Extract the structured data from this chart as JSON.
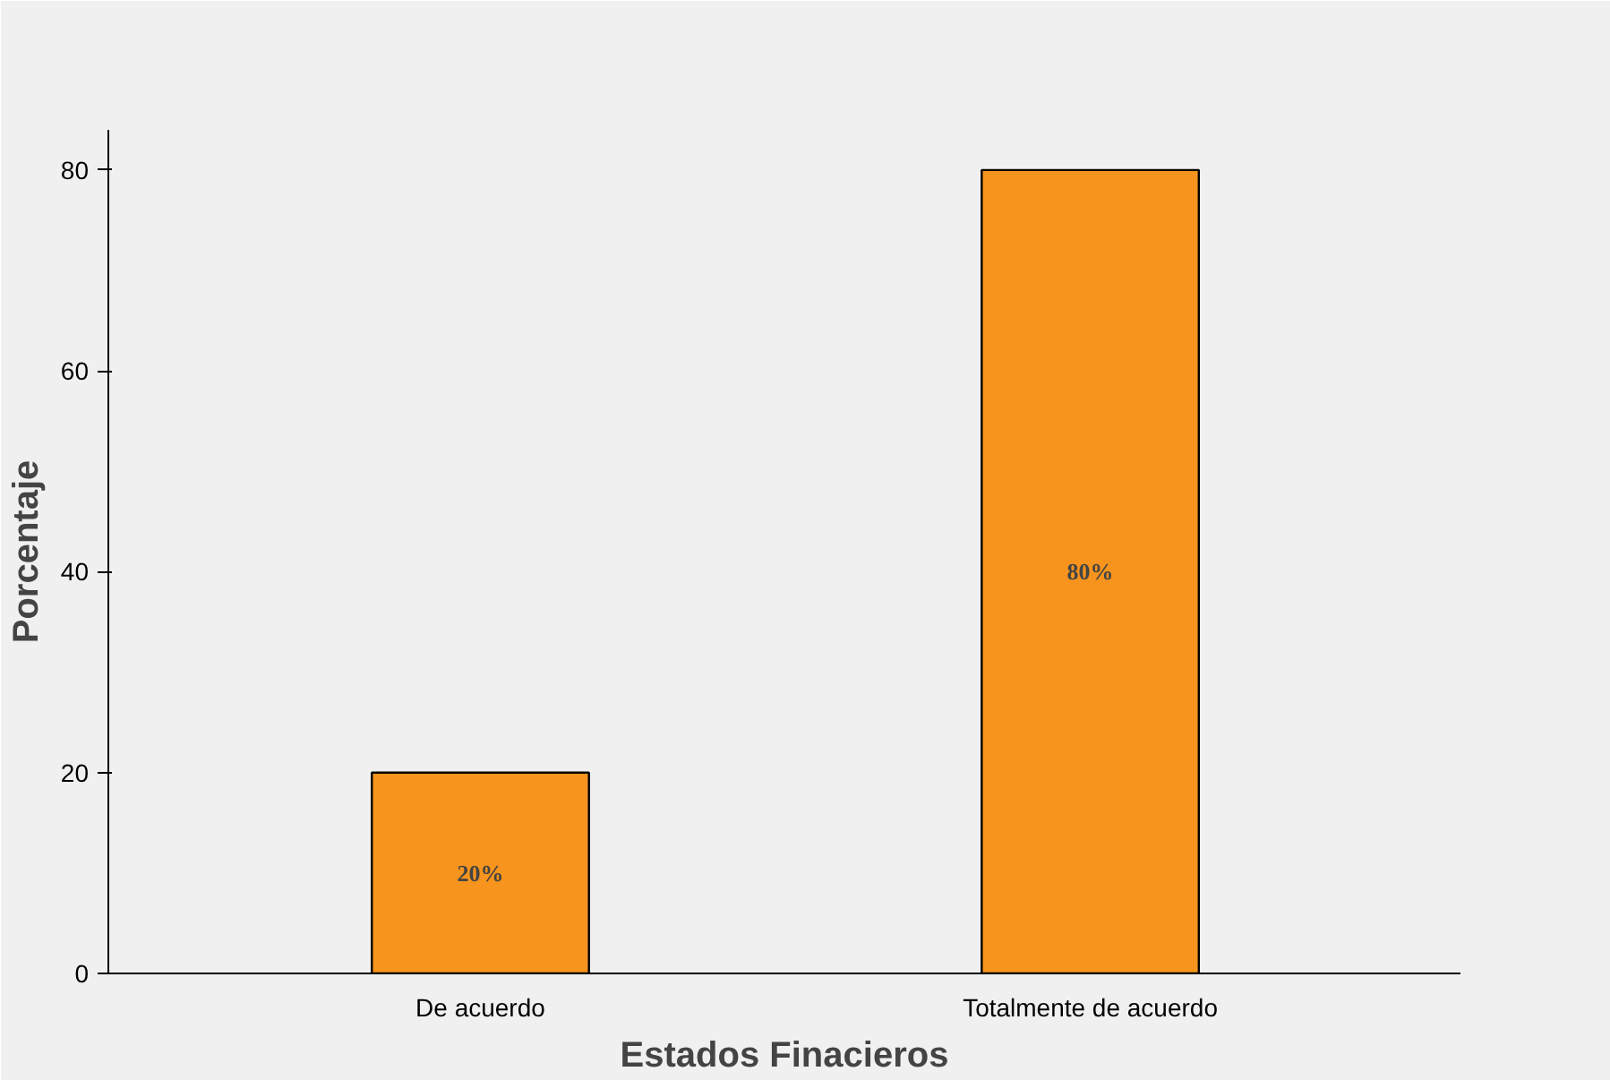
{
  "chart_data": {
    "type": "bar",
    "xlabel": "Estados Finacieros",
    "ylabel": "Porcentaje",
    "categories": [
      "De acuerdo",
      "Totalmente de acuerdo"
    ],
    "values": [
      20,
      80
    ],
    "value_labels": [
      "20%",
      "80%"
    ],
    "color": "#f7941d",
    "ylim": [
      0,
      84
    ],
    "yticks": [
      0,
      20,
      40,
      60,
      80
    ],
    "grid": false
  }
}
